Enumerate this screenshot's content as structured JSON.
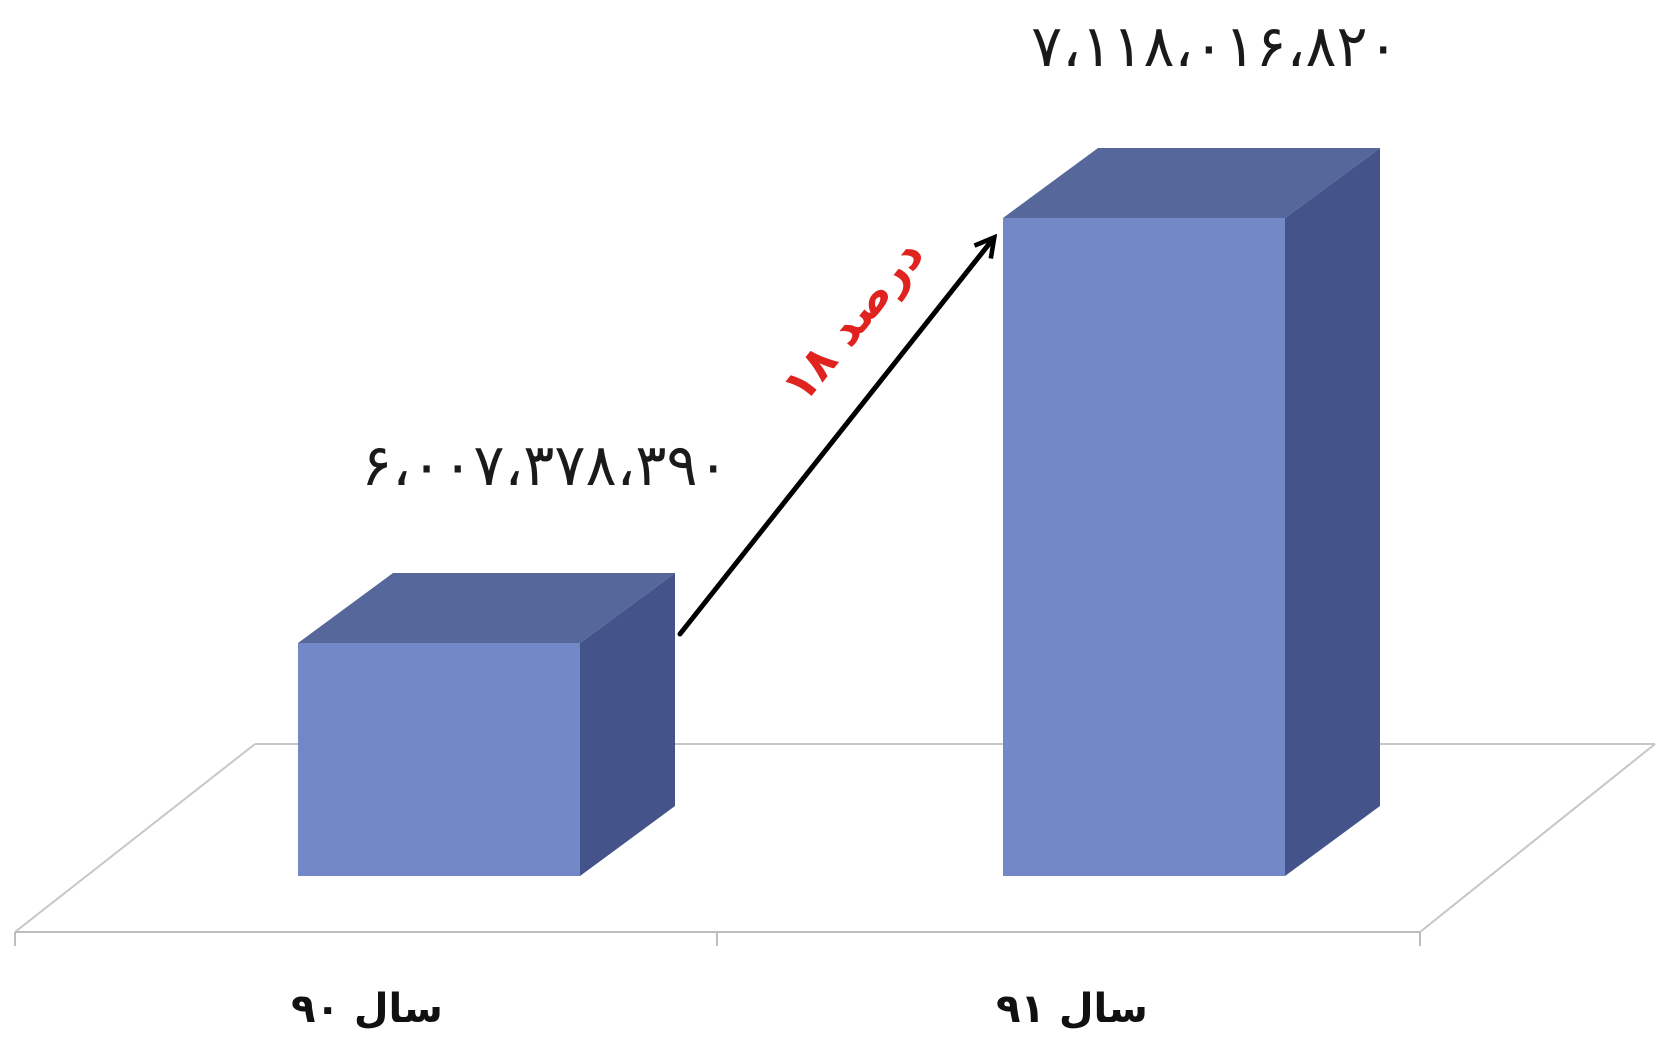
{
  "chart_data": {
    "type": "bar",
    "style": "3d-column",
    "categories": [
      "سال ۹۰",
      "سال ۹۱"
    ],
    "values": [
      6007378390,
      7118016820
    ],
    "data_labels": [
      "۶،۰۰۷،۳۷۸،۳۹۰",
      "۷،۱۱۸،۰۱۶،۸۲۰"
    ],
    "annotation": {
      "text": "۱۸ درصد",
      "color": "#e0231f"
    },
    "colors": {
      "bar_front": "#7388c7",
      "bar_top": "#56679c",
      "bar_side": "#44548a",
      "floor_line": "#c7c7c7",
      "arrow": "#000000"
    },
    "title": "",
    "xlabel": "",
    "ylabel": "",
    "grid": false,
    "legend": "none"
  }
}
